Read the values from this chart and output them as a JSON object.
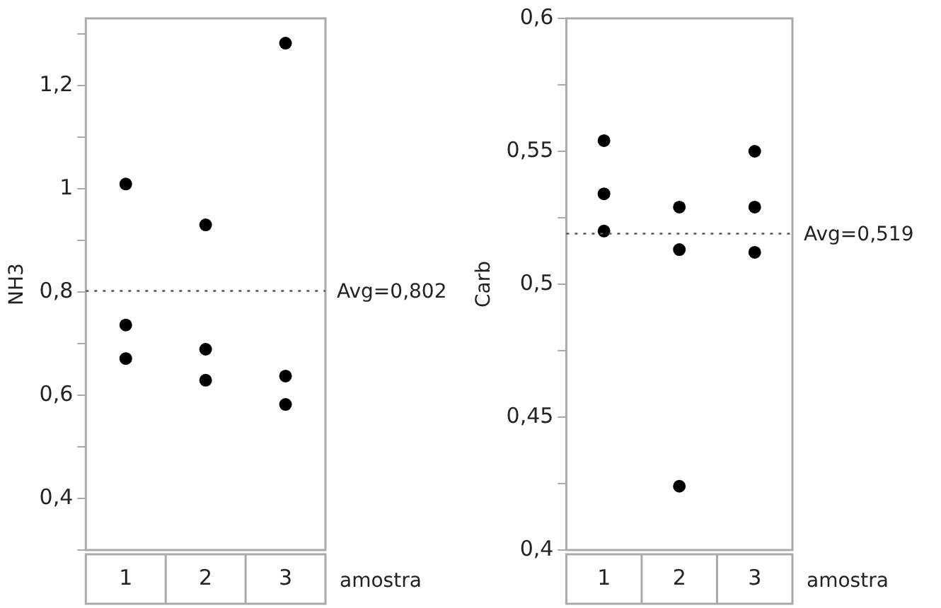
{
  "chart_data": [
    {
      "type": "scatter",
      "ylabel": "NH3",
      "xlabel": "amostra",
      "categories": [
        "1",
        "2",
        "3"
      ],
      "series": [
        {
          "color": "#000000",
          "x": [
            "1",
            "1",
            "1",
            "2",
            "2",
            "2",
            "3",
            "3",
            "3"
          ],
          "values": [
            1.009,
            0.736,
            0.671,
            0.93,
            0.689,
            0.629,
            1.282,
            0.637,
            0.582
          ]
        }
      ],
      "ylim": [
        0.3,
        1.33
      ],
      "yticks": [
        {
          "value": 0.3,
          "label": null
        },
        {
          "value": 0.4,
          "label": "0,4"
        },
        {
          "value": 0.5,
          "label": null
        },
        {
          "value": 0.6,
          "label": "0,6"
        },
        {
          "value": 0.7,
          "label": null
        },
        {
          "value": 0.8,
          "label": "0,8"
        },
        {
          "value": 0.9,
          "label": null
        },
        1,
        {
          "value": 1.1,
          "label": null
        },
        {
          "value": 1.2,
          "label": "1,2"
        },
        {
          "value": 1.3,
          "label": null
        }
      ],
      "ref_lines": [
        {
          "axis": "y",
          "value": 0.802,
          "label": "Avg=0,802",
          "color": "#555555",
          "line_style": "dotted"
        }
      ],
      "grid": false,
      "legend": false,
      "marker": "circle"
    },
    {
      "type": "scatter",
      "ylabel": "Carb",
      "xlabel": "amostra",
      "categories": [
        "1",
        "2",
        "3"
      ],
      "series": [
        {
          "color": "#000000",
          "x": [
            "1",
            "1",
            "1",
            "2",
            "2",
            "2",
            "3",
            "3",
            "3"
          ],
          "values": [
            0.554,
            0.534,
            0.52,
            0.529,
            0.513,
            0.424,
            0.55,
            0.529,
            0.512
          ]
        }
      ],
      "ylim": [
        0.4,
        0.6
      ],
      "yticks": [
        {
          "value": 0.4,
          "label": "0,4"
        },
        {
          "value": 0.425,
          "label": null
        },
        {
          "value": 0.45,
          "label": "0,45"
        },
        {
          "value": 0.475,
          "label": null
        },
        {
          "value": 0.5,
          "label": "0,5"
        },
        {
          "value": 0.525,
          "label": null
        },
        {
          "value": 0.55,
          "label": "0,55"
        },
        {
          "value": 0.575,
          "label": null
        },
        {
          "value": 0.6,
          "label": "0,6"
        }
      ],
      "ref_lines": [
        {
          "axis": "y",
          "value": 0.519,
          "label": "Avg=0,519",
          "color": "#555555",
          "line_style": "dotted"
        }
      ],
      "grid": false,
      "legend": false,
      "marker": "circle"
    }
  ]
}
